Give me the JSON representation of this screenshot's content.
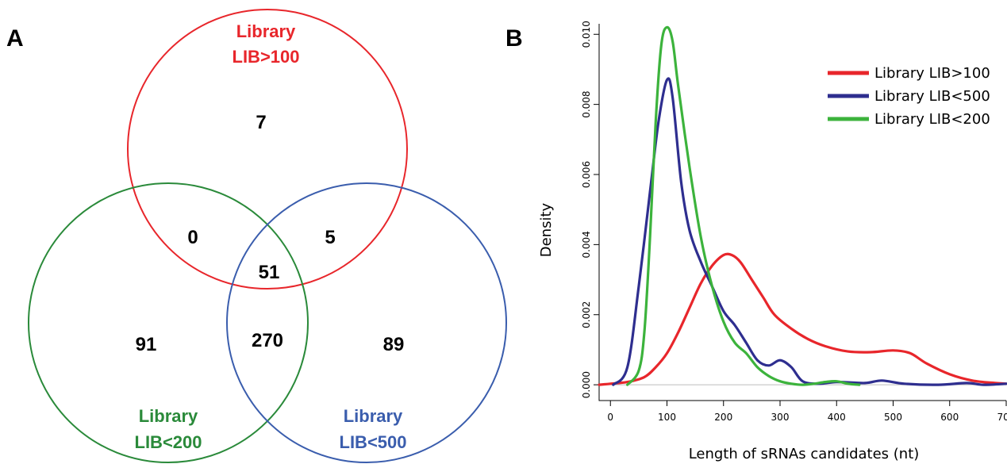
{
  "panel_a": {
    "letter": "A",
    "sets": [
      {
        "name_line1": "Library",
        "name_line2": "LIB>100",
        "color": "#e8262b"
      },
      {
        "name_line1": "Library",
        "name_line2": "LIB<200",
        "color": "#2a8a3a"
      },
      {
        "name_line1": "Library",
        "name_line2": "LIB<500",
        "color": "#3a5dad"
      }
    ],
    "counts": {
      "only_100": "7",
      "only_200": "91",
      "only_500": "89",
      "100_200": "0",
      "100_500": "5",
      "200_500": "270",
      "all": "51"
    }
  },
  "panel_b": {
    "letter": "B"
  },
  "chart_data": {
    "type": "line",
    "xlabel": "Length of sRNAs candidates (nt)",
    "ylabel": "Density",
    "xlim": [
      -20,
      700
    ],
    "ylim": [
      -0.00045,
      0.0103
    ],
    "xticks": [
      0,
      100,
      200,
      300,
      400,
      500,
      600,
      700
    ],
    "xtick_labels": [
      "0",
      "100",
      "200",
      "300",
      "400",
      "500",
      "600",
      "700"
    ],
    "yticks": [
      0.0,
      0.002,
      0.004,
      0.006,
      0.008,
      0.01
    ],
    "ytick_labels": [
      "0.000",
      "0.002",
      "0.004",
      "0.006",
      "0.008",
      "0.010"
    ],
    "zero_baseline": true,
    "grid": false,
    "legend_position": "top-right",
    "series": [
      {
        "name": "Library LIB>100",
        "color": "#e8262b",
        "x": [
          -20,
          0,
          30,
          60,
          80,
          100,
          120,
          140,
          160,
          180,
          200,
          215,
          230,
          250,
          270,
          290,
          320,
          350,
          380,
          420,
          460,
          500,
          530,
          560,
          600,
          640,
          680,
          700
        ],
        "y": [
          0.0,
          3e-05,
          8e-05,
          0.00022,
          0.0005,
          0.0009,
          0.0015,
          0.0022,
          0.0029,
          0.0034,
          0.0037,
          0.0037,
          0.0035,
          0.003,
          0.0025,
          0.002,
          0.0016,
          0.0013,
          0.0011,
          0.00095,
          0.00093,
          0.00098,
          0.0009,
          0.0006,
          0.0003,
          0.00012,
          5e-05,
          3e-05
        ]
      },
      {
        "name": "Library LIB<500",
        "color": "#2e2e8f",
        "x": [
          5,
          30,
          50,
          70,
          85,
          100,
          110,
          125,
          140,
          160,
          180,
          200,
          220,
          240,
          260,
          280,
          300,
          320,
          340,
          370,
          400,
          450,
          480,
          520,
          580,
          630,
          660,
          700
        ],
        "y": [
          0.0,
          0.0005,
          0.0028,
          0.0055,
          0.0075,
          0.0087,
          0.0082,
          0.0058,
          0.0044,
          0.0035,
          0.0028,
          0.0021,
          0.0017,
          0.0012,
          0.0007,
          0.00055,
          0.0007,
          0.0005,
          0.0001,
          3e-05,
          8e-05,
          5e-05,
          0.00012,
          3e-05,
          0.0,
          5e-05,
          0.0,
          3e-05
        ]
      },
      {
        "name": "Library LIB<200",
        "color": "#3cb33c",
        "x": [
          30,
          50,
          60,
          70,
          80,
          90,
          100,
          110,
          120,
          140,
          160,
          180,
          200,
          220,
          240,
          260,
          280,
          300,
          320,
          340,
          360,
          380,
          400,
          420,
          440
        ],
        "y": [
          0.0,
          0.0004,
          0.0015,
          0.0042,
          0.0075,
          0.0097,
          0.0102,
          0.0098,
          0.0085,
          0.0062,
          0.0042,
          0.0028,
          0.0018,
          0.0012,
          0.0009,
          0.0005,
          0.00025,
          0.0001,
          3e-05,
          0.0,
          3e-05,
          8e-05,
          0.0001,
          3e-05,
          0.0
        ]
      }
    ]
  }
}
